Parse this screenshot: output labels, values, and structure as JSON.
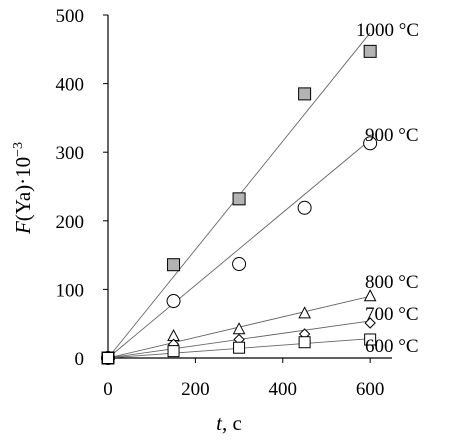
{
  "chart_data": {
    "type": "scatter",
    "xlabel": {
      "var": "t",
      "unit": ", c"
    },
    "ylabel": {
      "var": "F",
      "rest": "(Ya)·10",
      "exp": "−3"
    },
    "xlim": [
      0,
      650
    ],
    "ylim": [
      0,
      500
    ],
    "xticks": [
      {
        "value": 0,
        "label": "0"
      },
      {
        "value": 200,
        "label": "200"
      },
      {
        "value": 400,
        "label": "400"
      },
      {
        "value": 600,
        "label": "600"
      }
    ],
    "yticks": [
      {
        "value": 0,
        "label": "0"
      },
      {
        "value": 100,
        "label": "100"
      },
      {
        "value": 200,
        "label": "200"
      },
      {
        "value": 300,
        "label": "300"
      },
      {
        "value": 400,
        "label": "400"
      },
      {
        "value": 500,
        "label": "500"
      }
    ],
    "grid": false,
    "series": [
      {
        "name": "1000 °C",
        "marker": "square",
        "fill": "#b3b3b3",
        "slope": 0.79,
        "line_end": 600,
        "x": [
          0,
          150,
          300,
          450,
          600
        ],
        "y": [
          0,
          136,
          232,
          385,
          447
        ]
      },
      {
        "name": "900 °C",
        "marker": "circle",
        "fill": "#ffffff",
        "slope": 0.53,
        "line_end": 600,
        "x": [
          0,
          150,
          300,
          450,
          600
        ],
        "y": [
          0,
          83,
          137,
          219,
          313
        ]
      },
      {
        "name": "800 °C",
        "marker": "triangle",
        "fill": "#ffffff",
        "slope": 0.15,
        "line_end": 600,
        "x": [
          0,
          150,
          300,
          450,
          600
        ],
        "y": [
          0,
          32,
          42,
          65,
          90
        ]
      },
      {
        "name": "700 °C",
        "marker": "diamond",
        "fill": "#ffffff",
        "slope": 0.09,
        "line_end": 600,
        "x": [
          0,
          150,
          300,
          450,
          600
        ],
        "y": [
          0,
          20,
          27,
          35,
          51
        ]
      },
      {
        "name": "600 °C",
        "marker": "square",
        "fill": "#ffffff",
        "slope": 0.047,
        "line_end": 600,
        "x": [
          0,
          150,
          300,
          450,
          600
        ],
        "y": [
          0,
          10,
          15,
          23,
          27
        ]
      }
    ]
  }
}
